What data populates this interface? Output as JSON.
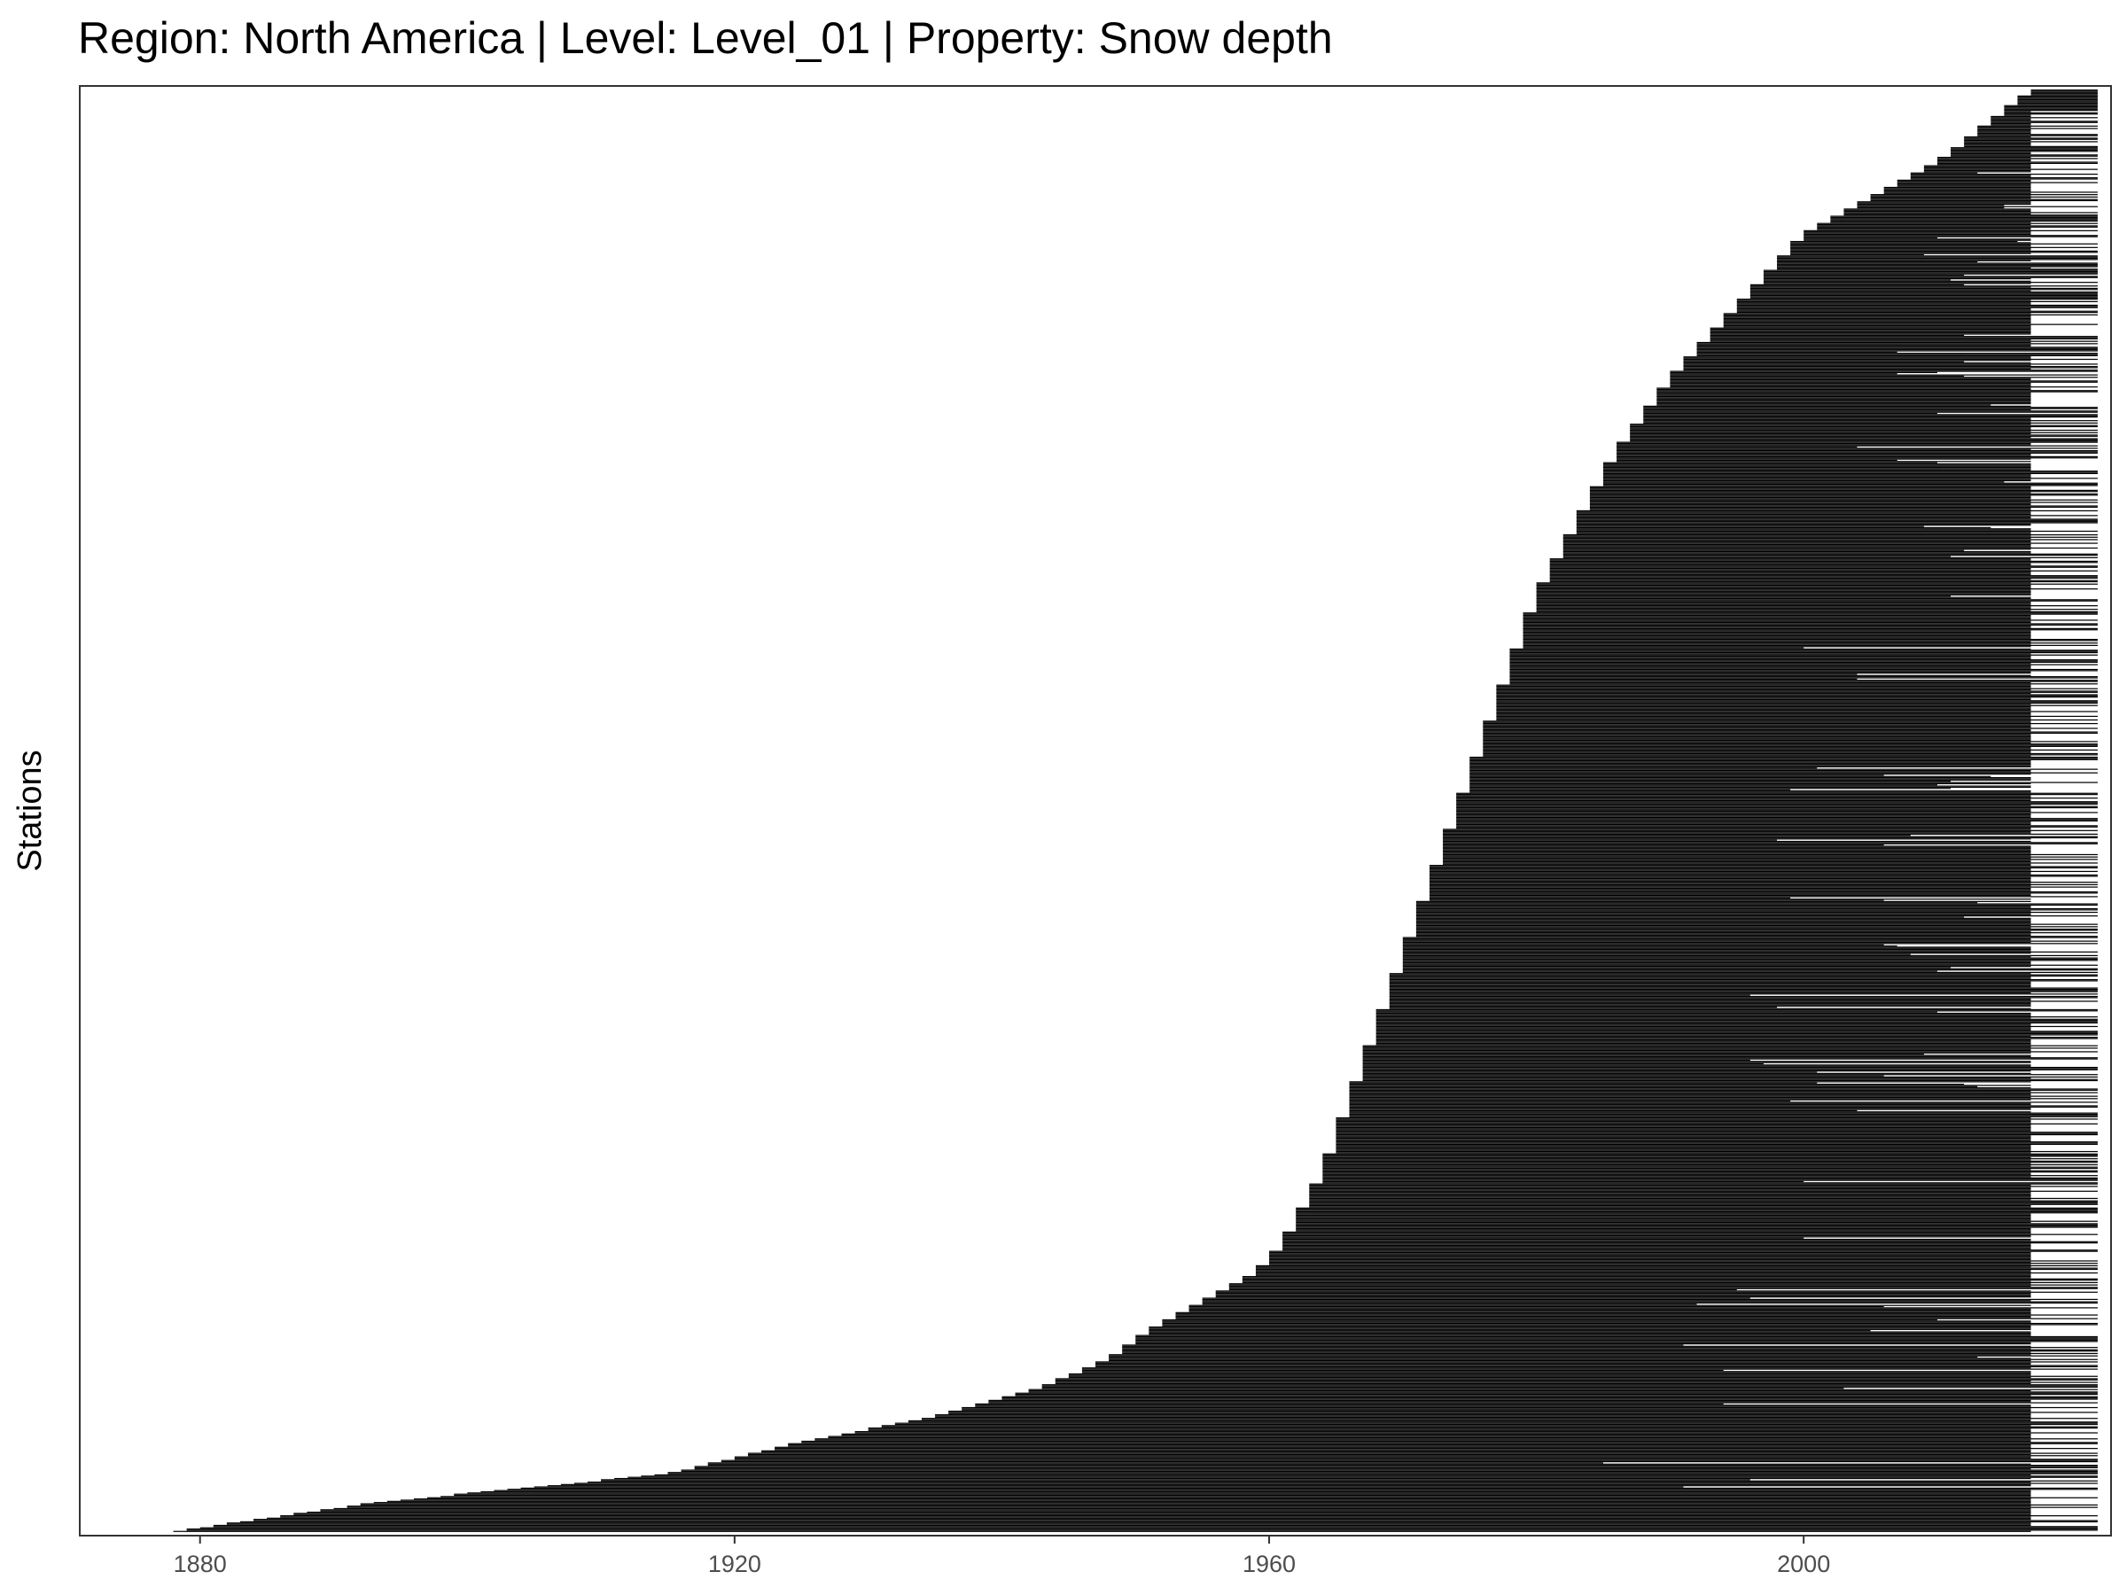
{
  "chart_data": {
    "type": "bar",
    "orientation": "horizontal-range",
    "title": "Region: North America | Level: Level_01 | Property: Snow depth",
    "xlabel": "",
    "ylabel": "Stations",
    "xlim": [
      1871,
      2023
    ],
    "xticks": [
      1880,
      1920,
      1960,
      2000
    ],
    "grid": false,
    "legend": "none",
    "bar_color": "#000000",
    "station_count": 1200,
    "start_year_profile": {
      "station_fraction": [
        0,
        0.02,
        0.04,
        0.06,
        0.08,
        0.1,
        0.12,
        0.14,
        0.16,
        0.18,
        0.2,
        0.25,
        0.3,
        0.35,
        0.4,
        0.45,
        0.5,
        0.55,
        0.6,
        0.65,
        0.7,
        0.75,
        0.8,
        0.85,
        0.9,
        0.95,
        1.0
      ],
      "start_year": [
        1878,
        1893,
        1915,
        1924,
        1935,
        1943,
        1948,
        1951,
        1955,
        1959,
        1961,
        1964,
        1966,
        1968,
        1970,
        1972,
        1974,
        1976,
        1978,
        1980,
        1983,
        1986,
        1990,
        1995,
        2000,
        2010,
        2017
      ]
    },
    "end_year_values": [
      2017,
      2022
    ],
    "end_year_weights": [
      0.55,
      0.45
    ]
  }
}
